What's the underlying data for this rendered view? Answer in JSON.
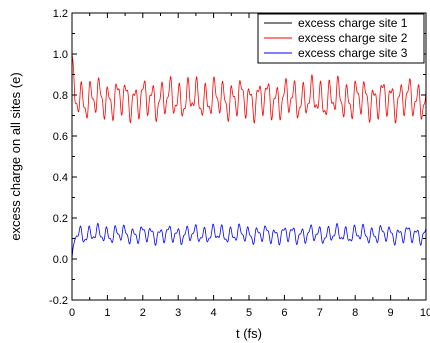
{
  "chart_data": {
    "type": "line",
    "title": "",
    "xlabel": "t (fs)",
    "ylabel": "excess charge on all sites (e)",
    "xlim": [
      0,
      10
    ],
    "ylim": [
      -0.2,
      1.2
    ],
    "xticks": [
      0,
      1,
      2,
      3,
      4,
      5,
      6,
      7,
      8,
      9,
      10
    ],
    "yticks": [
      -0.2,
      0.0,
      0.2,
      0.4,
      0.6,
      0.8,
      1.0,
      1.2
    ],
    "xtick_labels": [
      "0",
      "1",
      "2",
      "3",
      "4",
      "5",
      "6",
      "7",
      "8",
      "9",
      "10"
    ],
    "ytick_labels": [
      "-0.2",
      "0.0",
      "0.2",
      "0.4",
      "0.6",
      "0.8",
      "1.0",
      "1.2"
    ],
    "grid": false,
    "legend_position": "top-right",
    "series": [
      {
        "name": "excess charge site 1",
        "color": "#000000",
        "t_start": 0,
        "t_end": 10,
        "center": 0.0,
        "amplitude": 0.0,
        "period_fs": 0.25
      },
      {
        "name": "excess charge site 2",
        "color": "#ff0000",
        "t_start": 0,
        "t_end": 10,
        "center": 0.78,
        "amplitude": 0.11,
        "period_fs": 0.25,
        "initial_value": 1.0
      },
      {
        "name": "excess charge site 3",
        "color": "#0000ff",
        "t_start": 0,
        "t_end": 10,
        "center": 0.12,
        "amplitude": 0.05,
        "period_fs": 0.25,
        "initial_value": 0.0
      }
    ]
  }
}
